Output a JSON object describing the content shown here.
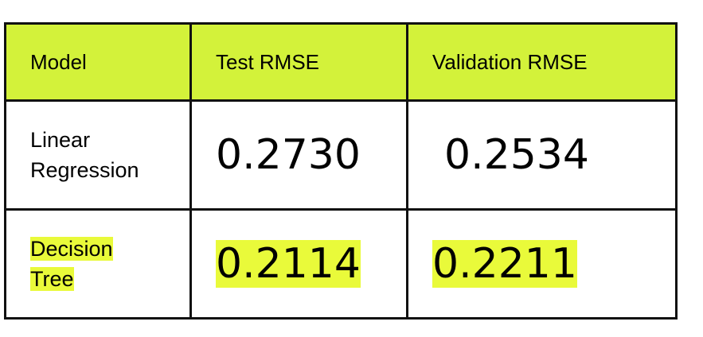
{
  "table": {
    "header": [
      "Model",
      "Test RMSE",
      "Validation RMSE"
    ],
    "rows": [
      [
        "Linear Regression",
        "0.2730",
        "0.2534"
      ],
      [
        "Decision Tree",
        "0.2114",
        "0.2211"
      ]
    ]
  }
}
